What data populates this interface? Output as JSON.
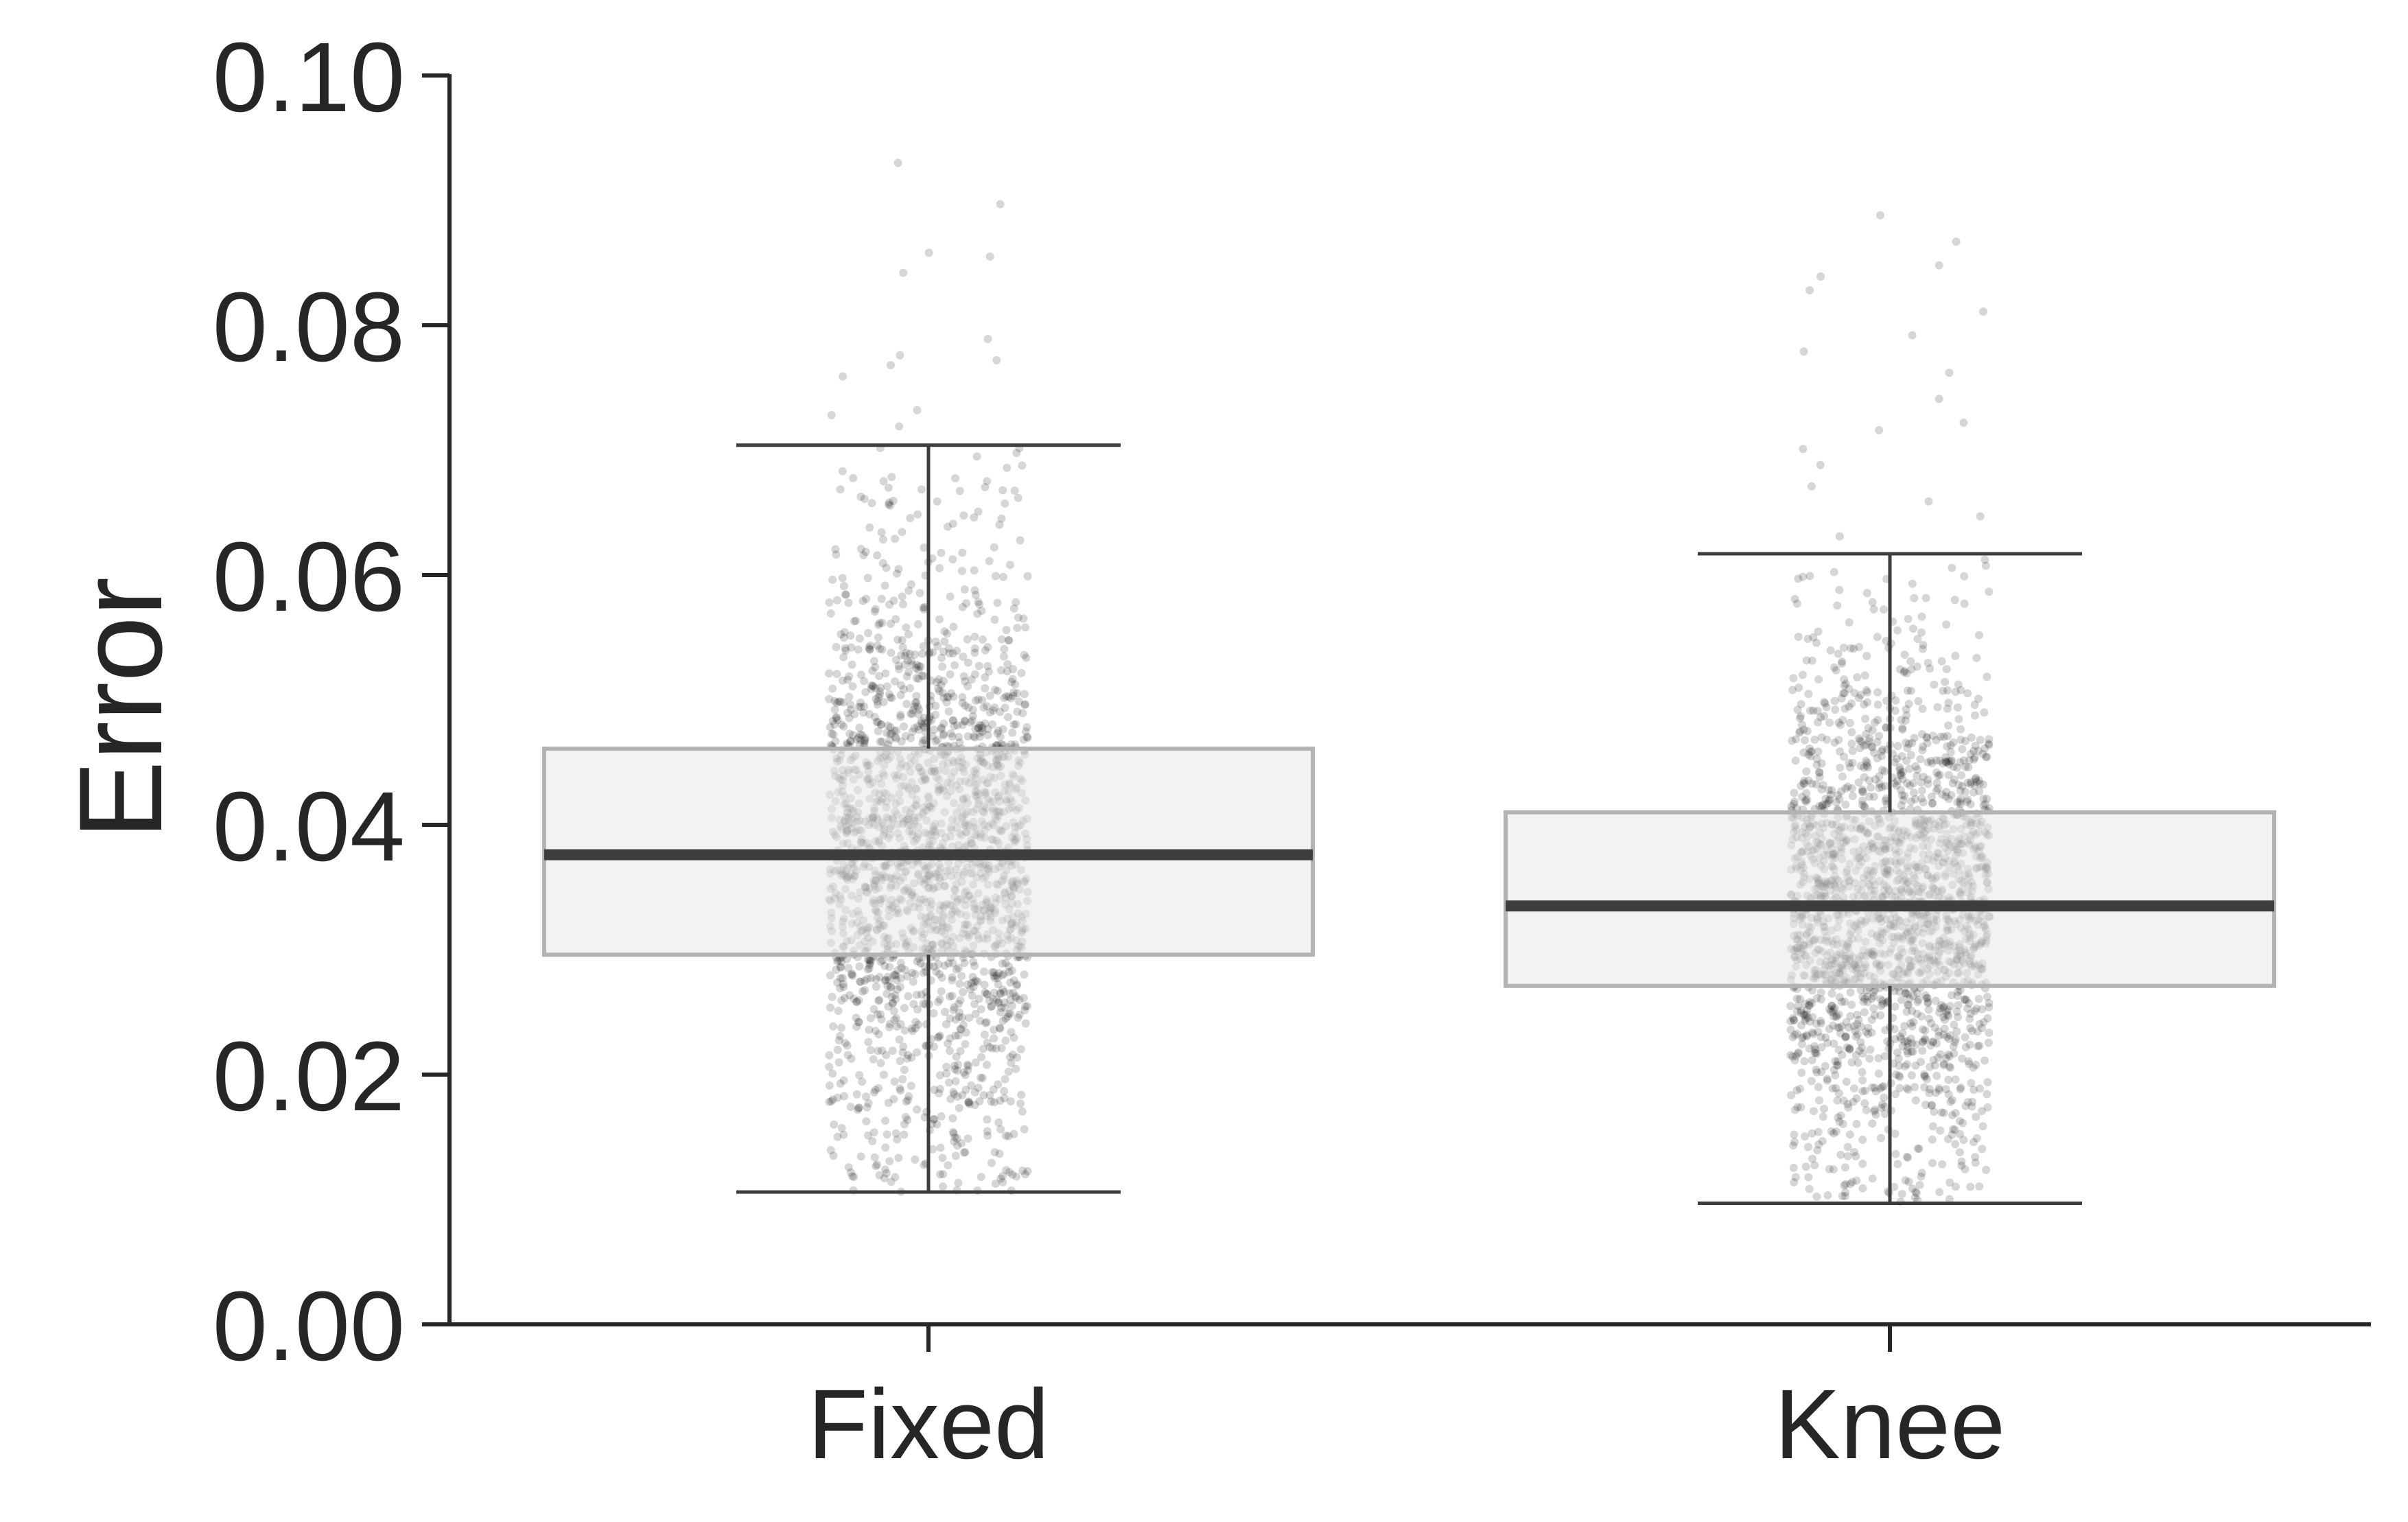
{
  "chart_data": {
    "type": "box",
    "title": "",
    "xlabel": "",
    "ylabel": "Error",
    "ylim": [
      0.0,
      0.1
    ],
    "yticks": [
      "0.00",
      "0.02",
      "0.04",
      "0.06",
      "0.08",
      "0.10"
    ],
    "categories": [
      "Fixed",
      "Knee"
    ],
    "grid": false,
    "legend": "none",
    "colors": {
      "box_fill": "#e8e8e8",
      "box_edge": "#b3b3b3",
      "median": "#3d3d3d",
      "whisker": "#3d3d3d",
      "points": "#000000",
      "axis": "#262626"
    },
    "series": [
      {
        "category": "Fixed",
        "whisker_low": 0.0106,
        "q1": 0.0296,
        "median": 0.0376,
        "q3": 0.0461,
        "whisker_high": 0.0704,
        "points_count": 2000,
        "outliers": [
          0.093,
          0.0897,
          0.0858,
          0.0855,
          0.0842,
          0.0789,
          0.0776,
          0.0772,
          0.0768,
          0.0759,
          0.0732,
          0.0728,
          0.0719
        ]
      },
      {
        "category": "Knee",
        "whisker_low": 0.0097,
        "q1": 0.0271,
        "median": 0.0335,
        "q3": 0.041,
        "whisker_high": 0.0617,
        "points_count": 2000,
        "outliers": [
          0.0888,
          0.0867,
          0.0848,
          0.0839,
          0.0828,
          0.0811,
          0.0792,
          0.0779,
          0.0762,
          0.0741,
          0.0722,
          0.0716,
          0.0701,
          0.0688,
          0.0671,
          0.0659,
          0.0647,
          0.0631
        ]
      }
    ]
  }
}
